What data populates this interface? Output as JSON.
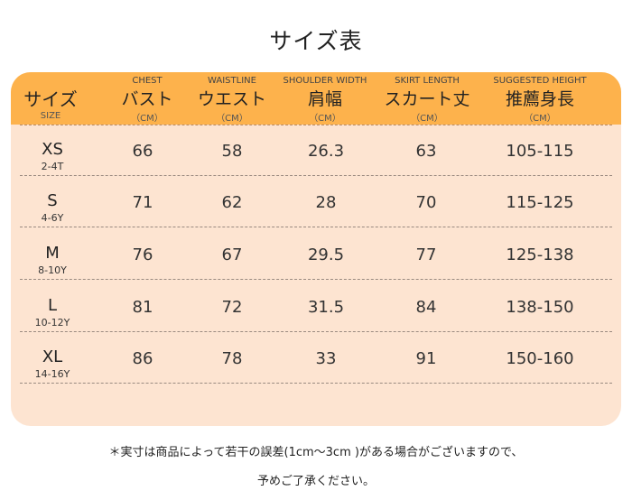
{
  "title": "サイズ表",
  "header": {
    "size_jp": "サイズ",
    "size_en": "SIZE",
    "columns": [
      {
        "en": "CHEST",
        "jp": "バスト",
        "unit": "（CM）"
      },
      {
        "en": "WAISTLINE",
        "jp": "ウエスト",
        "unit": "（CM）"
      },
      {
        "en": "SHOULDER WIDTH",
        "jp": "肩幅",
        "unit": "（CM）"
      },
      {
        "en": "SKIRT LENGTH",
        "jp": "スカート丈",
        "unit": "（CM）"
      },
      {
        "en": "SUGGESTED HEIGHT",
        "jp": "推薦身長",
        "unit": "（CM）"
      }
    ]
  },
  "rows": [
    {
      "size": "XS",
      "age": "2-4T",
      "values": [
        "66",
        "58",
        "26.3",
        "63",
        "105-115"
      ]
    },
    {
      "size": "S",
      "age": "4-6Y",
      "values": [
        "71",
        "62",
        "28",
        "70",
        "115-125"
      ]
    },
    {
      "size": "M",
      "age": "8-10Y",
      "values": [
        "76",
        "67",
        "29.5",
        "77",
        "125-138"
      ]
    },
    {
      "size": "L",
      "age": "10-12Y",
      "values": [
        "81",
        "72",
        "31.5",
        "84",
        "138-150"
      ]
    },
    {
      "size": "XL",
      "age": "14-16Y",
      "values": [
        "86",
        "78",
        "33",
        "91",
        "150-160"
      ]
    }
  ],
  "notes": {
    "line1": "＊実寸は商品によって若干の誤差(1cm～3cm )がある場合がございますので、",
    "line2": "予めご了承ください。"
  },
  "colors": {
    "header": "#fdb24c",
    "body": "#fde4d1"
  }
}
